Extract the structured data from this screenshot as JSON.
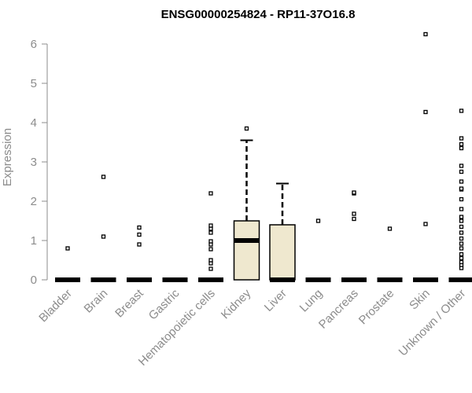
{
  "chart_data": {
    "type": "boxplot",
    "title": "ENSG00000254824 - RP11-37O16.8",
    "ylabel": "Expression",
    "xlabel": "",
    "ylim": [
      0,
      6.3
    ],
    "yticks": [
      0,
      1,
      2,
      3,
      4,
      5,
      6
    ],
    "box_fill": "#efe8cf",
    "categories": [
      "Bladder",
      "Brain",
      "Breast",
      "Gastric",
      "Hematopoietic cells",
      "Kidney",
      "Liver",
      "Lung",
      "Pancreas",
      "Prostate",
      "Skin",
      "Unknown / Other"
    ],
    "boxes": [
      {
        "category": "Bladder",
        "min": 0,
        "q1": 0,
        "median": 0,
        "q3": 0,
        "max": 0,
        "outliers": [
          0.8
        ]
      },
      {
        "category": "Brain",
        "min": 0,
        "q1": 0,
        "median": 0,
        "q3": 0,
        "max": 0,
        "outliers": [
          1.1,
          2.62
        ]
      },
      {
        "category": "Breast",
        "min": 0,
        "q1": 0,
        "median": 0,
        "q3": 0,
        "max": 0,
        "outliers": [
          0.9,
          1.15,
          1.33
        ]
      },
      {
        "category": "Gastric",
        "min": 0,
        "q1": 0,
        "median": 0,
        "q3": 0,
        "max": 0,
        "outliers": []
      },
      {
        "category": "Hematopoietic cells",
        "min": 0,
        "q1": 0,
        "median": 0,
        "q3": 0,
        "max": 0,
        "outliers": [
          0.28,
          0.42,
          0.5,
          0.78,
          0.9,
          0.98,
          1.2,
          1.3,
          1.38,
          2.2
        ]
      },
      {
        "category": "Kidney",
        "min": 0,
        "q1": 0,
        "median": 1.0,
        "q3": 1.5,
        "max": 3.55,
        "outliers": [
          3.85
        ]
      },
      {
        "category": "Liver",
        "min": 0,
        "q1": 0,
        "median": 0,
        "q3": 1.4,
        "max": 2.45,
        "outliers": []
      },
      {
        "category": "Lung",
        "min": 0,
        "q1": 0,
        "median": 0,
        "q3": 0,
        "max": 0,
        "outliers": [
          1.5
        ]
      },
      {
        "category": "Pancreas",
        "min": 0,
        "q1": 0,
        "median": 0,
        "q3": 0,
        "max": 0,
        "outliers": [
          1.55,
          1.68,
          2.2,
          2.22
        ]
      },
      {
        "category": "Prostate",
        "min": 0,
        "q1": 0,
        "median": 0,
        "q3": 0,
        "max": 0,
        "outliers": [
          1.3
        ]
      },
      {
        "category": "Skin",
        "min": 0,
        "q1": 0,
        "median": 0,
        "q3": 0,
        "max": 0,
        "outliers": [
          1.42,
          4.27,
          6.25
        ]
      },
      {
        "category": "Unknown / Other",
        "min": 0,
        "q1": 0,
        "median": 0,
        "q3": 0,
        "max": 0,
        "outliers": [
          0.3,
          0.38,
          0.45,
          0.55,
          0.65,
          0.8,
          0.92,
          1.05,
          1.2,
          1.35,
          1.5,
          1.6,
          1.8,
          2.05,
          2.3,
          2.32,
          2.5,
          2.75,
          2.9,
          3.35,
          3.45,
          3.6,
          4.3
        ]
      }
    ]
  }
}
